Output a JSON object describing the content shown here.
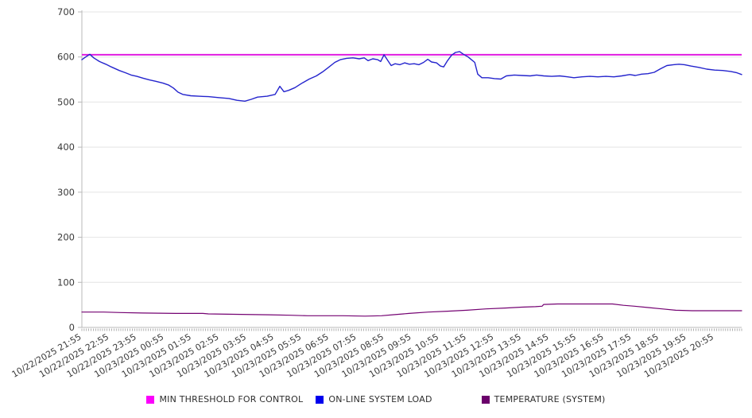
{
  "chart_data": {
    "type": "line",
    "title": "",
    "xlabel": "",
    "ylabel": "",
    "legend_position": "bottom",
    "grid": true,
    "x_axis": {
      "hours_span": 24,
      "minor_ticks_per_hour": 12,
      "labels": [
        "10/22/2025 21:55",
        "10/22/2025 22:55",
        "10/22/2025 23:55",
        "10/23/2025 00:55",
        "10/23/2025 01:55",
        "10/23/2025 02:55",
        "10/23/2025 03:55",
        "10/23/2025 04:55",
        "10/23/2025 05:55",
        "10/23/2025 06:55",
        "10/23/2025 07:55",
        "10/23/2025 08:55",
        "10/23/2025 09:55",
        "10/23/2025 10:55",
        "10/23/2025 11:55",
        "10/23/2025 12:55",
        "10/23/2025 13:55",
        "10/23/2025 14:55",
        "10/23/2025 15:55",
        "10/23/2025 16:55",
        "10/23/2025 17:55",
        "10/23/2025 18:55",
        "10/23/2025 19:55",
        "10/23/2025 20:55"
      ]
    },
    "y_axis": {
      "min": 0,
      "max": 700,
      "ticks": [
        0,
        100,
        200,
        300,
        400,
        500,
        600,
        700
      ]
    },
    "colors": {
      "grid_line": "#e4e4e4",
      "axis_line": "#b8b8b8",
      "minor_tick": "#8f8f8f",
      "tick_text": "#3a3a3a"
    },
    "series": [
      {
        "name": "MIN THRESHOLD FOR CONTROL",
        "kind": "constant",
        "value": 605,
        "color": "#e01ce0",
        "swatch": "#fb00fb",
        "width": 2
      },
      {
        "name": "ON-LINE SYSTEM LOAD",
        "kind": "points",
        "color": "#2424cd",
        "swatch": "#0000ee",
        "width": 1.4,
        "points": [
          [
            0,
            594
          ],
          [
            0.14,
            600
          ],
          [
            0.29,
            606
          ],
          [
            0.43,
            598
          ],
          [
            0.64,
            590
          ],
          [
            0.87,
            584
          ],
          [
            1.07,
            578
          ],
          [
            1.36,
            570
          ],
          [
            1.59,
            565
          ],
          [
            1.79,
            560
          ],
          [
            2.0,
            557
          ],
          [
            2.23,
            553
          ],
          [
            2.46,
            549
          ],
          [
            2.69,
            546
          ],
          [
            2.95,
            542
          ],
          [
            3.15,
            538
          ],
          [
            3.33,
            531
          ],
          [
            3.5,
            522
          ],
          [
            3.67,
            517
          ],
          [
            3.96,
            514
          ],
          [
            4.25,
            513
          ],
          [
            4.6,
            512
          ],
          [
            4.97,
            510
          ],
          [
            5.35,
            508
          ],
          [
            5.64,
            504
          ],
          [
            5.93,
            502
          ],
          [
            6.16,
            506
          ],
          [
            6.39,
            511
          ],
          [
            6.74,
            513
          ],
          [
            7.03,
            517
          ],
          [
            7.2,
            535
          ],
          [
            7.35,
            523
          ],
          [
            7.52,
            526
          ],
          [
            7.75,
            532
          ],
          [
            7.98,
            541
          ],
          [
            8.27,
            551
          ],
          [
            8.53,
            558
          ],
          [
            8.76,
            567
          ],
          [
            8.97,
            577
          ],
          [
            9.2,
            588
          ],
          [
            9.4,
            594
          ],
          [
            9.63,
            597
          ],
          [
            9.86,
            598
          ],
          [
            10.09,
            596
          ],
          [
            10.27,
            598
          ],
          [
            10.41,
            592
          ],
          [
            10.58,
            596
          ],
          [
            10.76,
            594
          ],
          [
            10.87,
            590
          ],
          [
            10.99,
            605
          ],
          [
            11.13,
            592
          ],
          [
            11.25,
            581
          ],
          [
            11.39,
            585
          ],
          [
            11.57,
            583
          ],
          [
            11.74,
            587
          ],
          [
            11.91,
            584
          ],
          [
            12.09,
            585
          ],
          [
            12.26,
            583
          ],
          [
            12.43,
            588
          ],
          [
            12.58,
            595
          ],
          [
            12.72,
            589
          ],
          [
            12.9,
            587
          ],
          [
            13.04,
            580
          ],
          [
            13.16,
            578
          ],
          [
            13.3,
            592
          ],
          [
            13.45,
            604
          ],
          [
            13.59,
            610
          ],
          [
            13.74,
            612
          ],
          [
            13.88,
            606
          ],
          [
            14.05,
            600
          ],
          [
            14.17,
            594
          ],
          [
            14.29,
            588
          ],
          [
            14.4,
            562
          ],
          [
            14.55,
            554
          ],
          [
            14.78,
            554
          ],
          [
            15.01,
            552
          ],
          [
            15.24,
            551
          ],
          [
            15.44,
            558
          ],
          [
            15.73,
            560
          ],
          [
            16.02,
            559
          ],
          [
            16.31,
            558
          ],
          [
            16.54,
            560
          ],
          [
            16.8,
            558
          ],
          [
            17.09,
            557
          ],
          [
            17.38,
            558
          ],
          [
            17.67,
            556
          ],
          [
            17.9,
            554
          ],
          [
            18.19,
            556
          ],
          [
            18.48,
            557
          ],
          [
            18.77,
            556
          ],
          [
            19.06,
            557
          ],
          [
            19.35,
            556
          ],
          [
            19.64,
            558
          ],
          [
            19.93,
            561
          ],
          [
            20.13,
            559
          ],
          [
            20.36,
            562
          ],
          [
            20.59,
            563
          ],
          [
            20.82,
            566
          ],
          [
            21.05,
            574
          ],
          [
            21.28,
            581
          ],
          [
            21.52,
            583
          ],
          [
            21.72,
            584
          ],
          [
            21.92,
            583
          ],
          [
            22.15,
            580
          ],
          [
            22.44,
            577
          ],
          [
            22.73,
            573
          ],
          [
            23.02,
            571
          ],
          [
            23.31,
            570
          ],
          [
            23.6,
            568
          ],
          [
            23.83,
            565
          ],
          [
            24,
            561
          ]
        ]
      },
      {
        "name": "TEMPERATURE (SYSTEM)",
        "kind": "points",
        "color": "#740272",
        "swatch": "#6b016b",
        "width": 1.2,
        "points": [
          [
            0,
            34
          ],
          [
            0.8,
            34
          ],
          [
            1.4,
            33
          ],
          [
            2.2,
            32
          ],
          [
            3.4,
            31
          ],
          [
            4.4,
            31
          ],
          [
            4.6,
            30
          ],
          [
            5.8,
            29
          ],
          [
            6.8,
            28
          ],
          [
            7.6,
            27
          ],
          [
            8.2,
            26
          ],
          [
            9.5,
            26
          ],
          [
            10.3,
            25
          ],
          [
            10.9,
            26
          ],
          [
            11.3,
            28
          ],
          [
            11.9,
            31
          ],
          [
            12.6,
            34
          ],
          [
            13.3,
            36
          ],
          [
            14.0,
            38
          ],
          [
            14.7,
            41
          ],
          [
            15.4,
            43
          ],
          [
            16.0,
            45
          ],
          [
            16.5,
            46
          ],
          [
            16.74,
            47
          ],
          [
            16.8,
            51
          ],
          [
            17.3,
            52
          ],
          [
            18.3,
            52
          ],
          [
            19.3,
            52
          ],
          [
            19.7,
            49
          ],
          [
            20.1,
            47
          ],
          [
            20.6,
            44
          ],
          [
            21.1,
            41
          ],
          [
            21.6,
            38
          ],
          [
            22.2,
            37
          ],
          [
            23.0,
            37
          ],
          [
            24,
            37
          ]
        ]
      }
    ]
  }
}
